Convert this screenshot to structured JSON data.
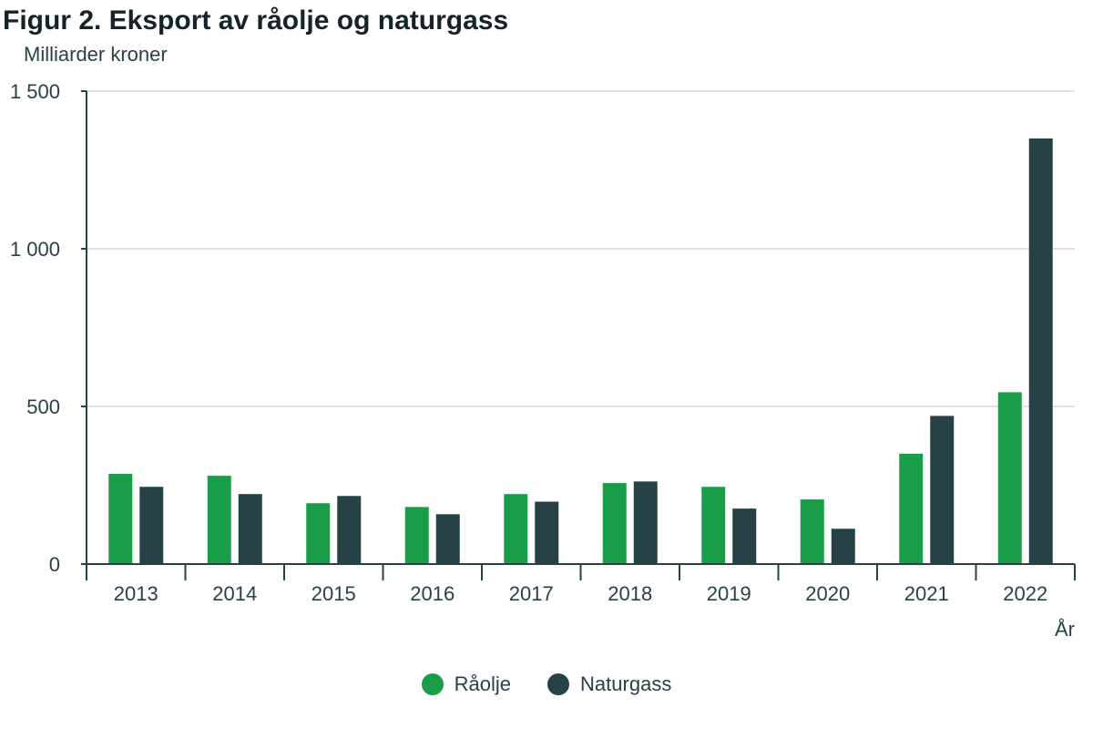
{
  "chart_data": {
    "type": "bar",
    "title": "Figur 2. Eksport av råolje og naturgass",
    "ylabel": "Milliarder kroner",
    "xlabel": "År",
    "categories": [
      "2013",
      "2014",
      "2015",
      "2016",
      "2017",
      "2018",
      "2019",
      "2020",
      "2021",
      "2022"
    ],
    "series": [
      {
        "name": "Råolje",
        "color": "#1a9d49",
        "values": [
          286,
          280,
          193,
          181,
          222,
          257,
          245,
          205,
          350,
          545
        ]
      },
      {
        "name": "Naturgass",
        "color": "#274247",
        "values": [
          245,
          222,
          216,
          158,
          198,
          262,
          176,
          112,
          470,
          1350
        ]
      }
    ],
    "ylim": [
      0,
      1500
    ],
    "yticks": [
      0,
      500,
      1000,
      1500
    ],
    "ytick_labels": [
      "0",
      "500",
      "1 000",
      "1 500"
    ],
    "grid": true,
    "legend_position": "bottom"
  }
}
